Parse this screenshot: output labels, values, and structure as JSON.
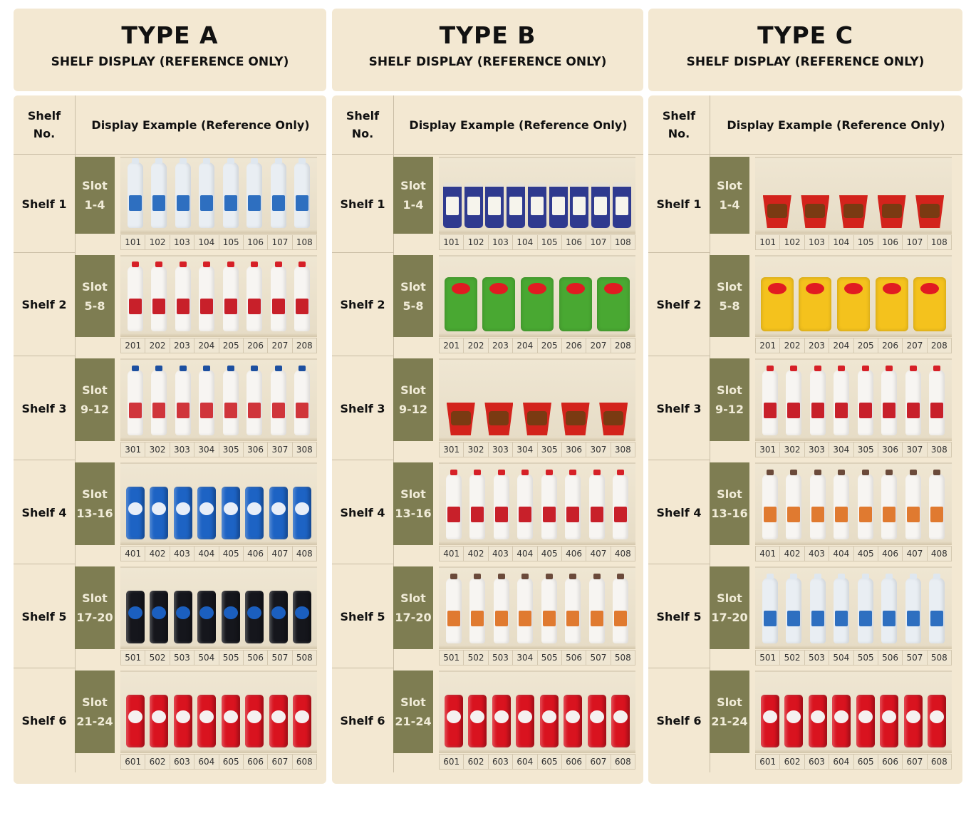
{
  "panels": [
    {
      "title": "TYPE A",
      "subtitle": "SHELF DISPLAY (REFERENCE ONLY)",
      "col_shelf_line1": "Shelf",
      "col_shelf_line2": "No.",
      "col_display": "Display Example (Reference Only)",
      "rows": [
        {
          "shelf": "Shelf 1",
          "slot_l1": "Slot",
          "slot_l2": "1-4",
          "product": "water-bottle-icon",
          "nums": [
            "101",
            "102",
            "103",
            "104",
            "105",
            "106",
            "107",
            "108"
          ]
        },
        {
          "shelf": "Shelf 2",
          "slot_l1": "Slot",
          "slot_l2": "5-8",
          "product": "milk-bottle-red-icon",
          "nums": [
            "201",
            "202",
            "203",
            "204",
            "205",
            "206",
            "207",
            "208"
          ]
        },
        {
          "shelf": "Shelf 3",
          "slot_l1": "Slot",
          "slot_l2": "9-12",
          "product": "milk-bottle-blue-icon",
          "nums": [
            "301",
            "302",
            "303",
            "304",
            "305",
            "306",
            "307",
            "308"
          ]
        },
        {
          "shelf": "Shelf 4",
          "slot_l1": "Slot",
          "slot_l2": "13-16",
          "product": "blue-soda-can-icon",
          "nums": [
            "401",
            "402",
            "403",
            "404",
            "405",
            "406",
            "407",
            "408"
          ]
        },
        {
          "shelf": "Shelf 5",
          "slot_l1": "Slot",
          "slot_l2": "17-20",
          "product": "black-soda-can-icon",
          "nums": [
            "501",
            "502",
            "503",
            "504",
            "505",
            "506",
            "507",
            "508"
          ]
        },
        {
          "shelf": "Shelf 6",
          "slot_l1": "Slot",
          "slot_l2": "21-24",
          "product": "red-soda-can-icon",
          "nums": [
            "601",
            "602",
            "603",
            "604",
            "605",
            "606",
            "607",
            "608"
          ]
        }
      ]
    },
    {
      "title": "TYPE B",
      "subtitle": "SHELF DISPLAY (REFERENCE ONLY)",
      "col_shelf_line1": "Shelf",
      "col_shelf_line2": "No.",
      "col_display": "Display Example (Reference Only)",
      "rows": [
        {
          "shelf": "Shelf 1",
          "slot_l1": "Slot",
          "slot_l2": "1-4",
          "product": "jar-icon",
          "nums": [
            "101",
            "102",
            "103",
            "104",
            "105",
            "106",
            "107",
            "108"
          ]
        },
        {
          "shelf": "Shelf 2",
          "slot_l1": "Slot",
          "slot_l2": "5-8",
          "product": "green-chips-bag-icon",
          "nums": [
            "201",
            "202",
            "203",
            "204",
            "205",
            "206",
            "207",
            "208"
          ]
        },
        {
          "shelf": "Shelf 3",
          "slot_l1": "Slot",
          "slot_l2": "9-12",
          "product": "noodle-cup-icon",
          "nums": [
            "301",
            "302",
            "303",
            "304",
            "305",
            "306",
            "307",
            "308"
          ]
        },
        {
          "shelf": "Shelf 4",
          "slot_l1": "Slot",
          "slot_l2": "13-16",
          "product": "milk-bottle-red-icon",
          "nums": [
            "401",
            "402",
            "403",
            "404",
            "405",
            "406",
            "407",
            "408"
          ]
        },
        {
          "shelf": "Shelf 5",
          "slot_l1": "Slot",
          "slot_l2": "17-20",
          "product": "milk-bottle-orange-icon",
          "nums": [
            "501",
            "502",
            "503",
            "304",
            "505",
            "506",
            "507",
            "508"
          ]
        },
        {
          "shelf": "Shelf 6",
          "slot_l1": "Slot",
          "slot_l2": "21-24",
          "product": "red-soda-can-icon",
          "nums": [
            "601",
            "602",
            "603",
            "604",
            "605",
            "606",
            "607",
            "608"
          ]
        }
      ]
    },
    {
      "title": "TYPE C",
      "subtitle": "SHELF DISPLAY (REFERENCE ONLY)",
      "col_shelf_line1": "Shelf",
      "col_shelf_line2": "No.",
      "col_display": "Display Example (Reference Only)",
      "rows": [
        {
          "shelf": "Shelf 1",
          "slot_l1": "Slot",
          "slot_l2": "1-4",
          "product": "noodle-cup-icon",
          "nums": [
            "101",
            "102",
            "103",
            "104",
            "105",
            "106",
            "107",
            "108"
          ]
        },
        {
          "shelf": "Shelf 2",
          "slot_l1": "Slot",
          "slot_l2": "5-8",
          "product": "yellow-chips-bag-icon",
          "nums": [
            "201",
            "202",
            "203",
            "204",
            "205",
            "206",
            "207",
            "208"
          ]
        },
        {
          "shelf": "Shelf 3",
          "slot_l1": "Slot",
          "slot_l2": "9-12",
          "product": "milk-bottle-red-icon",
          "nums": [
            "301",
            "302",
            "303",
            "304",
            "305",
            "306",
            "307",
            "308"
          ]
        },
        {
          "shelf": "Shelf 4",
          "slot_l1": "Slot",
          "slot_l2": "13-16",
          "product": "milk-bottle-orange-icon",
          "nums": [
            "401",
            "402",
            "403",
            "404",
            "405",
            "406",
            "407",
            "408"
          ]
        },
        {
          "shelf": "Shelf 5",
          "slot_l1": "Slot",
          "slot_l2": "17-20",
          "product": "water-bottle-icon",
          "nums": [
            "501",
            "502",
            "503",
            "504",
            "505",
            "506",
            "507",
            "508"
          ]
        },
        {
          "shelf": "Shelf 6",
          "slot_l1": "Slot",
          "slot_l2": "21-24",
          "product": "red-soda-can-icon",
          "nums": [
            "601",
            "602",
            "603",
            "604",
            "605",
            "606",
            "607",
            "608"
          ]
        }
      ]
    }
  ],
  "colors": {
    "panel_bg": "#f3e8d2",
    "slot_bg": "#7e7d52",
    "slot_text": "#f1ecd8"
  }
}
